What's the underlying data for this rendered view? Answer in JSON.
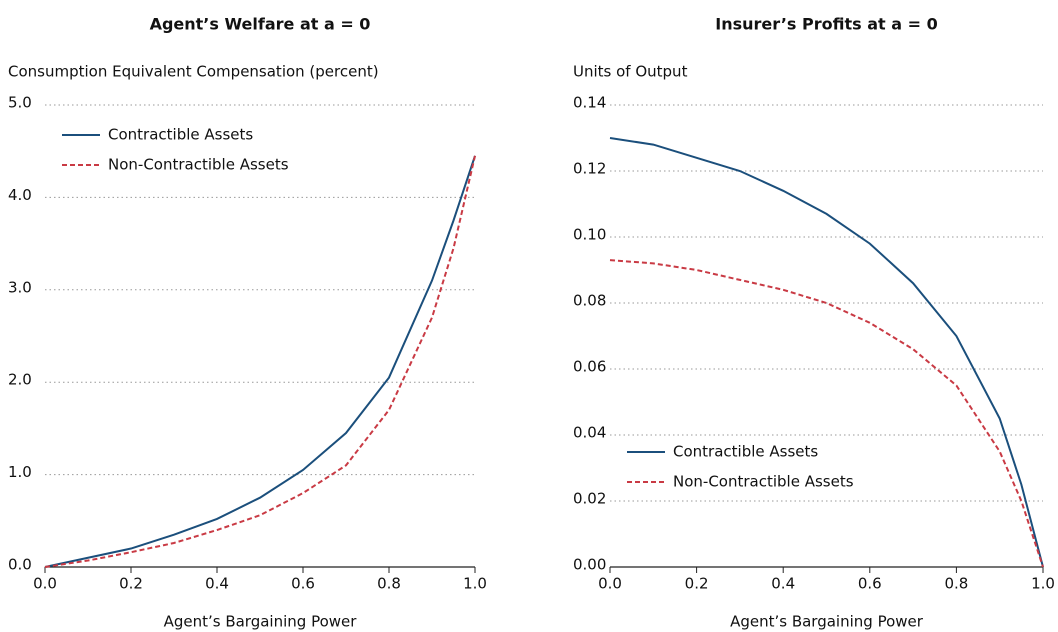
{
  "chart_data": [
    {
      "type": "line",
      "title": "Agent’s Welfare at a = 0",
      "y_label": "Consumption Equivalent Compensation (percent)",
      "x_label": "Agent’s Bargaining Power",
      "x": [
        0,
        0.1,
        0.2,
        0.3,
        0.4,
        0.5,
        0.6,
        0.7,
        0.8,
        0.9,
        0.95,
        1.0
      ],
      "series": [
        {
          "name": "Contractible Assets",
          "color": "#1b4f7c",
          "linestyle": "solid",
          "values": [
            0,
            0.1,
            0.2,
            0.35,
            0.52,
            0.75,
            1.05,
            1.45,
            2.05,
            3.1,
            3.75,
            4.45
          ]
        },
        {
          "name": "Non-Contractible Assets",
          "color": "#c93a44",
          "linestyle": "dashed",
          "values": [
            0,
            0.07,
            0.16,
            0.26,
            0.4,
            0.56,
            0.8,
            1.1,
            1.7,
            2.7,
            3.45,
            4.45
          ]
        }
      ],
      "xlim": [
        0,
        1
      ],
      "xticks": [
        {
          "value": 0,
          "label": "0.0"
        },
        {
          "value": 0.2,
          "label": "0.2"
        },
        {
          "value": 0.4,
          "label": "0.4"
        },
        {
          "value": 0.6,
          "label": "0.6"
        },
        {
          "value": 0.8,
          "label": "0.8"
        },
        {
          "value": 1,
          "label": "1.0"
        }
      ],
      "ylim": [
        0,
        5
      ],
      "yticks": [
        {
          "value": 0,
          "label": "0.0"
        },
        {
          "value": 1,
          "label": "1.0"
        },
        {
          "value": 2,
          "label": "2.0"
        },
        {
          "value": 3,
          "label": "3.0"
        },
        {
          "value": 4,
          "label": "4.0"
        },
        {
          "value": 5,
          "label": "5.0"
        }
      ],
      "grid": true,
      "legend": "upper left"
    },
    {
      "type": "line",
      "title": "Insurer’s Profits at a = 0",
      "y_label": "Units of Output",
      "x_label": "Agent’s Bargaining Power",
      "x": [
        0,
        0.1,
        0.2,
        0.3,
        0.4,
        0.5,
        0.6,
        0.7,
        0.8,
        0.9,
        0.95,
        1.0
      ],
      "series": [
        {
          "name": "Contractible Assets",
          "color": "#1b4f7c",
          "linestyle": "solid",
          "values": [
            0.13,
            0.128,
            0.124,
            0.12,
            0.114,
            0.107,
            0.098,
            0.086,
            0.07,
            0.045,
            0.025,
            0
          ]
        },
        {
          "name": "Non-Contractible Assets",
          "color": "#c93a44",
          "linestyle": "dashed",
          "values": [
            0.093,
            0.092,
            0.09,
            0.087,
            0.084,
            0.08,
            0.074,
            0.066,
            0.055,
            0.035,
            0.02,
            0
          ]
        }
      ],
      "xlim": [
        0,
        1
      ],
      "xticks": [
        {
          "value": 0,
          "label": "0.0"
        },
        {
          "value": 0.2,
          "label": "0.2"
        },
        {
          "value": 0.4,
          "label": "0.4"
        },
        {
          "value": 0.6,
          "label": "0.6"
        },
        {
          "value": 0.8,
          "label": "0.8"
        },
        {
          "value": 1,
          "label": "1.0"
        }
      ],
      "ylim": [
        0,
        0.14
      ],
      "yticks": [
        {
          "value": 0,
          "label": "0.00"
        },
        {
          "value": 0.02,
          "label": "0.02"
        },
        {
          "value": 0.04,
          "label": "0.04"
        },
        {
          "value": 0.06,
          "label": "0.06"
        },
        {
          "value": 0.08,
          "label": "0.08"
        },
        {
          "value": 0.1,
          "label": "0.10"
        },
        {
          "value": 0.12,
          "label": "0.12"
        },
        {
          "value": 0.14,
          "label": "0.14"
        }
      ],
      "grid": true,
      "legend": "lower left"
    }
  ]
}
